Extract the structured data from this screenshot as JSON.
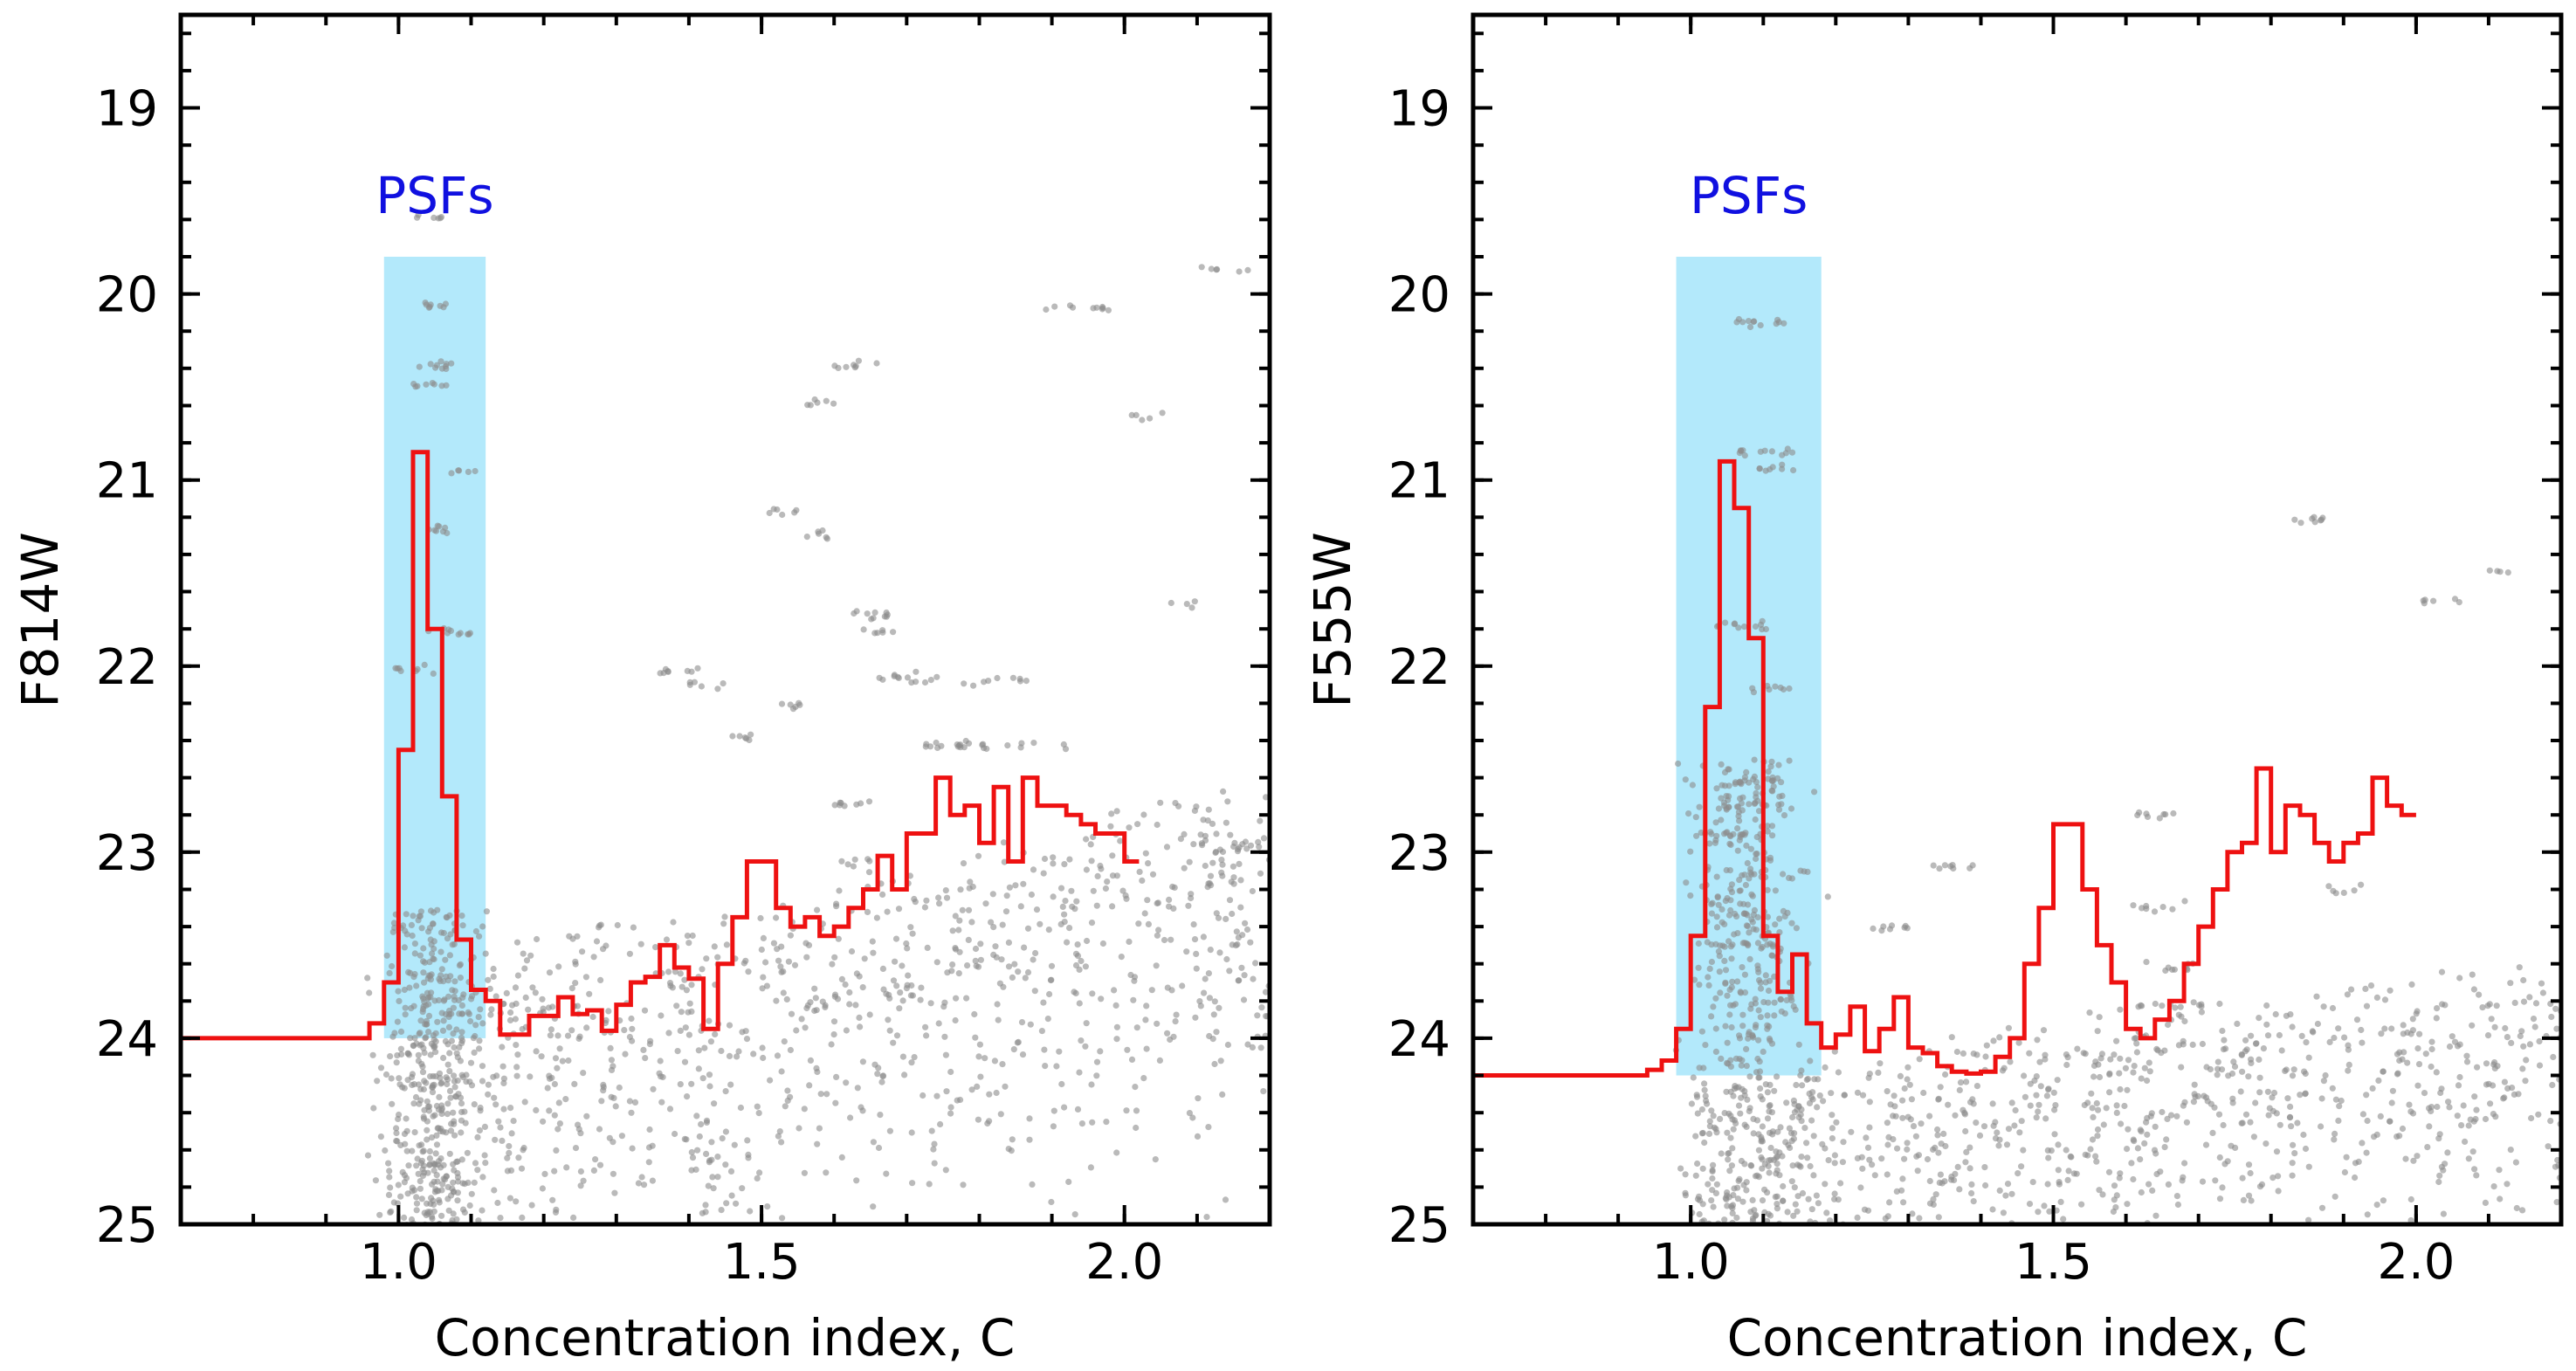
{
  "chart_data": [
    {
      "type": "scatter",
      "title": "",
      "xlabel": "Concentration index, C",
      "ylabel": "F814W",
      "xlim": [
        0.7,
        2.2
      ],
      "ylim": [
        25,
        18.5
      ],
      "y_inverted": true,
      "xticks": [
        1.0,
        1.5,
        2.0
      ],
      "xtick_labels": [
        "1.0",
        "1.5",
        "2.0"
      ],
      "yticks": [
        19,
        20,
        21,
        22,
        23,
        24,
        25
      ],
      "ytick_labels": [
        "19",
        "20",
        "21",
        "22",
        "23",
        "24",
        "25"
      ],
      "grid": false,
      "psf_region": {
        "label": "PSFs",
        "x_range": [
          0.98,
          1.12
        ],
        "y_range": [
          19.8,
          24.0
        ],
        "color": "#b3e9fb",
        "label_color": "#1010e0"
      },
      "scatter_color": "#8c8c8c",
      "histogram": {
        "color": "#ee1111",
        "x_start": 0.7,
        "baseline_until": 0.96,
        "baseline": 24.0,
        "bin_width": 0.02,
        "values": [
          23.92,
          23.7,
          22.45,
          20.85,
          21.8,
          22.7,
          23.47,
          23.74,
          23.8,
          23.98,
          23.98,
          23.88,
          23.88,
          23.78,
          23.87,
          23.85,
          23.96,
          23.82,
          23.7,
          23.67,
          23.5,
          23.62,
          23.68,
          23.95,
          23.6,
          23.35,
          23.05,
          23.05,
          23.3,
          23.4,
          23.35,
          23.45,
          23.4,
          23.3,
          23.2,
          23.02,
          23.2,
          22.9,
          22.9,
          22.6,
          22.8,
          22.75,
          22.95,
          22.65,
          23.05,
          22.6,
          22.75,
          22.75,
          22.8,
          22.85,
          22.9,
          22.9,
          23.05
        ]
      },
      "scatter_clusters": [
        {
          "c": 1.045,
          "mag": 19.58,
          "n": 6,
          "w": 0.02
        },
        {
          "c": 1.05,
          "mag": 20.06,
          "n": 8,
          "w": 0.02
        },
        {
          "c": 1.05,
          "mag": 20.39,
          "n": 10,
          "w": 0.025
        },
        {
          "c": 1.045,
          "mag": 20.48,
          "n": 8,
          "w": 0.025
        },
        {
          "c": 1.09,
          "mag": 20.95,
          "n": 5,
          "w": 0.02
        },
        {
          "c": 1.06,
          "mag": 21.27,
          "n": 8,
          "w": 0.02
        },
        {
          "c": 1.07,
          "mag": 21.82,
          "n": 10,
          "w": 0.03
        },
        {
          "c": 1.02,
          "mag": 22.02,
          "n": 8,
          "w": 0.03
        },
        {
          "c": 1.39,
          "mag": 22.02,
          "n": 8,
          "w": 0.03
        },
        {
          "c": 1.43,
          "mag": 22.1,
          "n": 6,
          "w": 0.03
        },
        {
          "c": 1.47,
          "mag": 22.39,
          "n": 6,
          "w": 0.02
        },
        {
          "c": 1.54,
          "mag": 22.2,
          "n": 6,
          "w": 0.02
        },
        {
          "c": 1.53,
          "mag": 21.17,
          "n": 6,
          "w": 0.02
        },
        {
          "c": 1.58,
          "mag": 21.3,
          "n": 6,
          "w": 0.02
        },
        {
          "c": 1.58,
          "mag": 20.58,
          "n": 6,
          "w": 0.02
        },
        {
          "c": 1.63,
          "mag": 20.38,
          "n": 8,
          "w": 0.03
        },
        {
          "c": 1.65,
          "mag": 21.72,
          "n": 10,
          "w": 0.04
        },
        {
          "c": 1.66,
          "mag": 21.82,
          "n": 6,
          "w": 0.03
        },
        {
          "c": 1.7,
          "mag": 22.06,
          "n": 10,
          "w": 0.05
        },
        {
          "c": 1.79,
          "mag": 22.08,
          "n": 12,
          "w": 0.08
        },
        {
          "c": 1.76,
          "mag": 22.43,
          "n": 12,
          "w": 0.06
        },
        {
          "c": 1.85,
          "mag": 22.42,
          "n": 12,
          "w": 0.08
        },
        {
          "c": 1.63,
          "mag": 22.75,
          "n": 8,
          "w": 0.03
        },
        {
          "c": 1.63,
          "mag": 23.05,
          "n": 6,
          "w": 0.02
        },
        {
          "c": 1.74,
          "mag": 23.25,
          "n": 6,
          "w": 0.03
        },
        {
          "c": 1.93,
          "mag": 20.08,
          "n": 10,
          "w": 0.05
        },
        {
          "c": 2.03,
          "mag": 20.65,
          "n": 5,
          "w": 0.03
        },
        {
          "c": 2.13,
          "mag": 19.87,
          "n": 6,
          "w": 0.04
        },
        {
          "c": 2.08,
          "mag": 21.67,
          "n": 4,
          "w": 0.02
        },
        {
          "c": 1.3,
          "mag": 23.4,
          "n": 5,
          "w": 0.03
        }
      ]
    },
    {
      "type": "scatter",
      "title": "",
      "xlabel": "Concentration index, C",
      "ylabel": "F555W",
      "xlim": [
        0.7,
        2.2
      ],
      "ylim": [
        25,
        18.5
      ],
      "y_inverted": true,
      "xticks": [
        1.0,
        1.5,
        2.0
      ],
      "xtick_labels": [
        "1.0",
        "1.5",
        "2.0"
      ],
      "yticks": [
        19,
        20,
        21,
        22,
        23,
        24,
        25
      ],
      "ytick_labels": [
        "19",
        "20",
        "21",
        "22",
        "23",
        "24",
        "25"
      ],
      "grid": false,
      "psf_region": {
        "label": "PSFs",
        "x_range": [
          0.98,
          1.18
        ],
        "y_range": [
          19.8,
          24.2
        ],
        "color": "#b3e9fb",
        "label_color": "#1010e0"
      },
      "scatter_color": "#8c8c8c",
      "histogram": {
        "color": "#ee1111",
        "x_start": 0.7,
        "baseline_until": 0.94,
        "baseline": 24.2,
        "bin_width": 0.02,
        "values": [
          24.17,
          24.12,
          23.95,
          23.45,
          22.22,
          20.9,
          21.15,
          21.85,
          23.45,
          23.75,
          23.55,
          23.92,
          24.05,
          23.98,
          23.83,
          24.07,
          23.95,
          23.78,
          24.05,
          24.08,
          24.15,
          24.18,
          24.19,
          24.18,
          24.1,
          24.0,
          23.6,
          23.3,
          22.85,
          22.85,
          23.2,
          23.5,
          23.7,
          23.95,
          24.0,
          23.9,
          23.8,
          23.6,
          23.4,
          23.2,
          23.0,
          22.95,
          22.55,
          23.0,
          22.75,
          22.8,
          22.95,
          23.05,
          22.95,
          22.9,
          22.6,
          22.75,
          22.8
        ]
      },
      "scatter_clusters": [
        {
          "c": 1.09,
          "mag": 20.15,
          "n": 12,
          "w": 0.04
        },
        {
          "c": 1.1,
          "mag": 20.85,
          "n": 12,
          "w": 0.04
        },
        {
          "c": 1.12,
          "mag": 20.93,
          "n": 8,
          "w": 0.03
        },
        {
          "c": 1.07,
          "mag": 21.78,
          "n": 12,
          "w": 0.04
        },
        {
          "c": 1.11,
          "mag": 22.12,
          "n": 8,
          "w": 0.03
        },
        {
          "c": 1.09,
          "mag": 22.62,
          "n": 12,
          "w": 0.04
        },
        {
          "c": 1.08,
          "mag": 22.75,
          "n": 14,
          "w": 0.05
        },
        {
          "c": 1.05,
          "mag": 22.9,
          "n": 10,
          "w": 0.04
        },
        {
          "c": 1.1,
          "mag": 23.12,
          "n": 8,
          "w": 0.03
        },
        {
          "c": 1.08,
          "mag": 23.33,
          "n": 10,
          "w": 0.04
        },
        {
          "c": 1.06,
          "mag": 23.5,
          "n": 14,
          "w": 0.05
        },
        {
          "c": 1.27,
          "mag": 23.4,
          "n": 8,
          "w": 0.03
        },
        {
          "c": 1.37,
          "mag": 23.08,
          "n": 8,
          "w": 0.04
        },
        {
          "c": 1.64,
          "mag": 22.8,
          "n": 8,
          "w": 0.03
        },
        {
          "c": 1.86,
          "mag": 21.22,
          "n": 8,
          "w": 0.03
        },
        {
          "c": 2.03,
          "mag": 21.65,
          "n": 6,
          "w": 0.03
        },
        {
          "c": 1.65,
          "mag": 23.3,
          "n": 8,
          "w": 0.04
        },
        {
          "c": 1.66,
          "mag": 23.62,
          "n": 10,
          "w": 0.05
        },
        {
          "c": 1.67,
          "mag": 23.82,
          "n": 10,
          "w": 0.05
        },
        {
          "c": 1.9,
          "mag": 23.2,
          "n": 6,
          "w": 0.03
        },
        {
          "c": 2.12,
          "mag": 21.5,
          "n": 4,
          "w": 0.02
        }
      ]
    }
  ]
}
